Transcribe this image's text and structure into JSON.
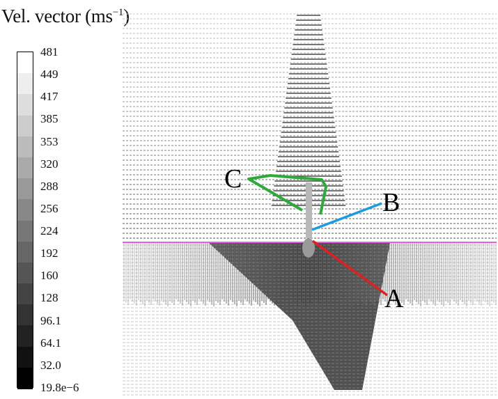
{
  "legend": {
    "title_main": "Vel. vector (ms",
    "title_sup": "−1",
    "title_close": ")",
    "levels": [
      "481",
      "449",
      "417",
      "385",
      "353",
      "320",
      "288",
      "256",
      "224",
      "192",
      "160",
      "128",
      "96.1",
      "64.1",
      "32.0",
      "19.8e−6"
    ]
  },
  "labels": {
    "a": "A",
    "b": "B",
    "c": "C"
  },
  "colors": {
    "interface_line": "#e060e0",
    "label_a": "#e02020",
    "label_b": "#1e9ae0",
    "label_c": "#2eaa3a"
  }
}
